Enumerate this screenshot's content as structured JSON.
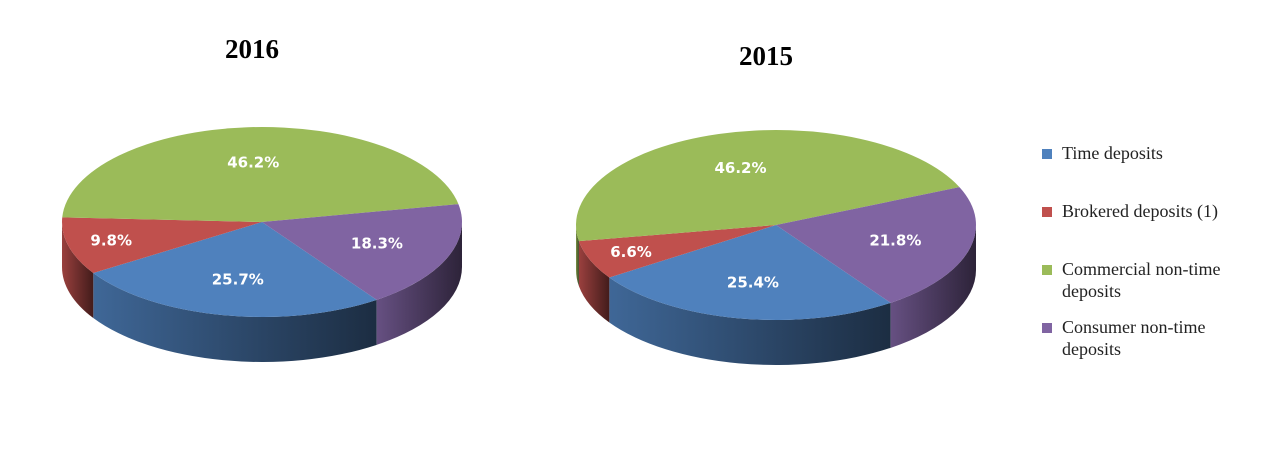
{
  "chart_data": [
    {
      "type": "pie",
      "title": "2016",
      "values": [
        25.7,
        9.8,
        46.2,
        18.3
      ],
      "value_labels": [
        "25.7%",
        "9.8%",
        "46.2%",
        "18.3%"
      ]
    },
    {
      "type": "pie",
      "title": "2015",
      "values": [
        25.4,
        6.6,
        46.2,
        21.8
      ],
      "value_labels": [
        "25.4%",
        "6.6%",
        "46.2%",
        "21.8%"
      ]
    }
  ],
  "legend": {
    "position": "right",
    "entries": [
      {
        "name": "Time deposits",
        "color": "#4f81bd"
      },
      {
        "name": "Brokered deposits (1)",
        "color": "#c0504d"
      },
      {
        "name": "Commercial non-time deposits",
        "color": "#9bbb59"
      },
      {
        "name": "Consumer non-time deposits",
        "color": "#8064a2"
      }
    ]
  }
}
